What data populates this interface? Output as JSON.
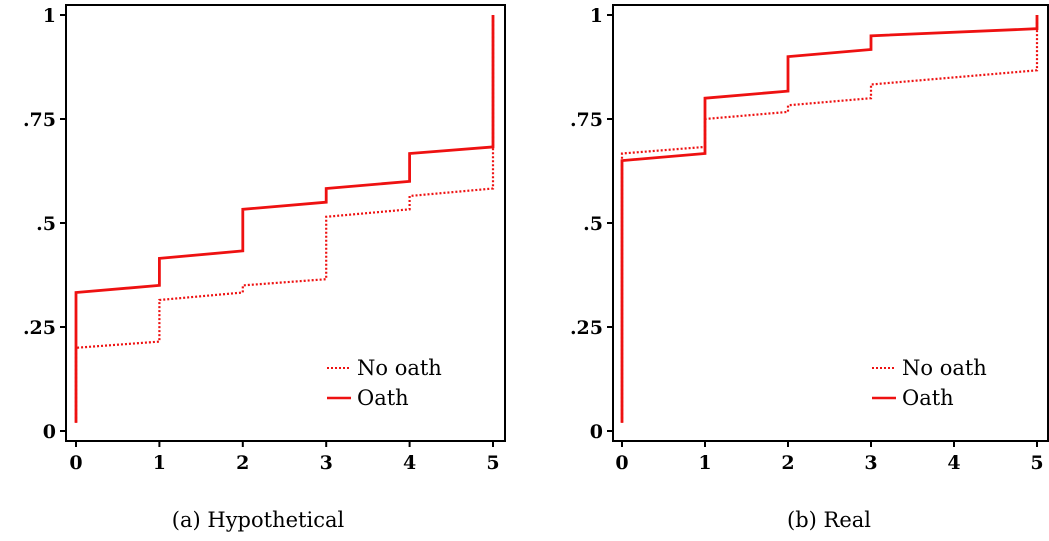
{
  "colors": {
    "series": "#ee1111",
    "axis": "#000000"
  },
  "chart_data": [
    {
      "type": "line",
      "step": true,
      "caption": "(a) Hypothetical",
      "xlim": [
        0,
        5
      ],
      "ylim": [
        0,
        1
      ],
      "x_ticks": [
        0,
        1,
        2,
        3,
        4,
        5
      ],
      "x_tick_labels": [
        "0",
        "1",
        "2",
        "3",
        "4",
        "5"
      ],
      "y_ticks": [
        0,
        0.25,
        0.5,
        0.75,
        1
      ],
      "y_tick_labels": [
        "0",
        ".25",
        ".5",
        ".75",
        "1"
      ],
      "grid": false,
      "legend_position": "bottom-right",
      "series": [
        {
          "name": "No oath",
          "style": "dotted",
          "points": [
            [
              0,
              0.02
            ],
            [
              0,
              0.2
            ],
            [
              1,
              0.215
            ],
            [
              1,
              0.315
            ],
            [
              2,
              0.333
            ],
            [
              2,
              0.35
            ],
            [
              3,
              0.365
            ],
            [
              3,
              0.515
            ],
            [
              4,
              0.533
            ],
            [
              4,
              0.565
            ],
            [
              5,
              0.583
            ],
            [
              5,
              1.0
            ]
          ]
        },
        {
          "name": "Oath",
          "style": "solid",
          "points": [
            [
              0,
              0.02
            ],
            [
              0,
              0.333
            ],
            [
              1,
              0.35
            ],
            [
              1,
              0.415
            ],
            [
              2,
              0.433
            ],
            [
              2,
              0.533
            ],
            [
              3,
              0.55
            ],
            [
              3,
              0.583
            ],
            [
              4,
              0.6
            ],
            [
              4,
              0.667
            ],
            [
              5,
              0.683
            ],
            [
              5,
              1.0
            ]
          ]
        }
      ]
    },
    {
      "type": "line",
      "step": true,
      "caption": "(b) Real",
      "xlim": [
        0,
        5
      ],
      "ylim": [
        0,
        1
      ],
      "x_ticks": [
        0,
        1,
        2,
        3,
        4,
        5
      ],
      "x_tick_labels": [
        "0",
        "1",
        "2",
        "3",
        "4",
        "5"
      ],
      "y_ticks": [
        0,
        0.25,
        0.5,
        0.75,
        1
      ],
      "y_tick_labels": [
        "0",
        ".25",
        ".5",
        ".75",
        "1"
      ],
      "grid": false,
      "legend_position": "bottom-right",
      "series": [
        {
          "name": "No oath",
          "style": "dotted",
          "points": [
            [
              0,
              0.02
            ],
            [
              0,
              0.667
            ],
            [
              1,
              0.683
            ],
            [
              1,
              0.75
            ],
            [
              2,
              0.767
            ],
            [
              2,
              0.783
            ],
            [
              3,
              0.8
            ],
            [
              3,
              0.833
            ],
            [
              5,
              0.867
            ],
            [
              5,
              1.0
            ]
          ]
        },
        {
          "name": "Oath",
          "style": "solid",
          "points": [
            [
              0,
              0.02
            ],
            [
              0,
              0.65
            ],
            [
              1,
              0.667
            ],
            [
              1,
              0.8
            ],
            [
              2,
              0.817
            ],
            [
              2,
              0.9
            ],
            [
              3,
              0.917
            ],
            [
              3,
              0.95
            ],
            [
              5,
              0.967
            ],
            [
              5,
              1.0
            ]
          ]
        }
      ]
    }
  ]
}
